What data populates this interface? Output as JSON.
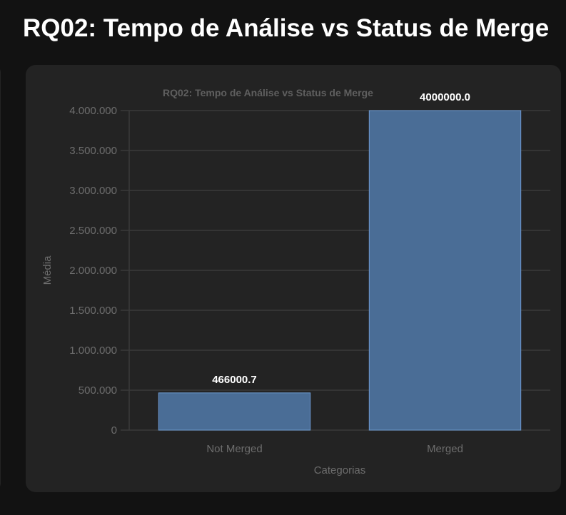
{
  "page": {
    "title": "RQ02: Tempo de Análise vs Status de Merge"
  },
  "chart_data": {
    "type": "bar",
    "title": "RQ02: Tempo de Análise vs Status de Merge",
    "categories": [
      "Not Merged",
      "Merged"
    ],
    "values": [
      466000.7,
      4000000.0
    ],
    "value_labels": [
      "466000.7",
      "4000000.0"
    ],
    "xlabel": "Categorias",
    "ylabel": "Média",
    "ylim": [
      0,
      4000000
    ],
    "yticks": [
      0,
      500000,
      1000000,
      1500000,
      2000000,
      2500000,
      3000000,
      3500000,
      4000000
    ],
    "ytick_labels": [
      "0",
      "500.000",
      "1.000.000",
      "1.500.000",
      "2.000.000",
      "2.500.000",
      "3.000.000",
      "3.500.000",
      "4.000.000"
    ],
    "grid": true,
    "legend": "none",
    "bar_color": "#4a6d96",
    "bar_border_color": "#6d9ad0"
  }
}
